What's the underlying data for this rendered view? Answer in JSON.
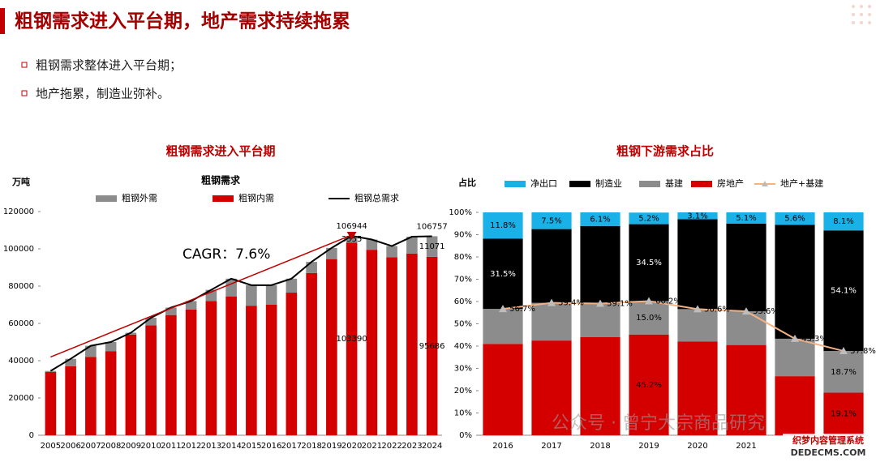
{
  "title": "粗钢需求进入平台期，地产需求持续拖累",
  "bullets": [
    "粗钢需求整体进入平台期；",
    "地产拖累，制造业弥补。"
  ],
  "watermark": "公众号 · 曾宁大宗商品研究",
  "badge": [
    "织梦内容管理系统",
    "DEDECMS.COM"
  ],
  "chart_data": [
    {
      "type": "bar",
      "stacked": true,
      "heading": "粗钢需求进入平台期",
      "title": "粗钢需求",
      "y_label": "万吨",
      "annotation": "CAGR：7.6%",
      "categories": [
        "2005",
        "2006",
        "2007",
        "2008",
        "2009",
        "2010",
        "2011",
        "2012",
        "2013",
        "2014",
        "2015",
        "2016",
        "2017",
        "2018",
        "2019",
        "2020",
        "2021",
        "2022",
        "2023",
        "2024"
      ],
      "series": [
        {
          "name": "粗钢外需",
          "color": "#8c8c8c",
          "kind": "bar",
          "values": [
            500,
            4000,
            6000,
            5000,
            1000,
            4000,
            4000,
            4500,
            6000,
            9500,
            11000,
            10500,
            7500,
            6000,
            6000,
            3555,
            5500,
            6000,
            9000,
            11071
          ],
          "value_labels": [
            null,
            null,
            null,
            null,
            null,
            null,
            null,
            null,
            null,
            null,
            null,
            null,
            null,
            null,
            null,
            "3555",
            null,
            null,
            null,
            "11071"
          ]
        },
        {
          "name": "粗钢内需",
          "color": "#d40000",
          "kind": "bar",
          "values": [
            34000,
            37000,
            42000,
            45000,
            54000,
            59000,
            64500,
            67500,
            72000,
            74500,
            69500,
            70000,
            76500,
            87000,
            94500,
            103390,
            99500,
            95500,
            97500,
            95686
          ],
          "value_labels": [
            null,
            null,
            null,
            null,
            null,
            null,
            null,
            null,
            null,
            null,
            null,
            null,
            null,
            null,
            null,
            "103390",
            null,
            null,
            null,
            "95686"
          ]
        },
        {
          "name": "粗钢总需求",
          "color": "#000000",
          "kind": "line",
          "values": [
            34500,
            41000,
            48000,
            50000,
            55000,
            63000,
            68500,
            72000,
            78000,
            84000,
            80500,
            80500,
            84000,
            93000,
            100500,
            106944,
            105000,
            101500,
            106500,
            106757
          ],
          "value_labels": [
            null,
            null,
            null,
            null,
            null,
            null,
            null,
            null,
            null,
            null,
            null,
            null,
            null,
            null,
            null,
            "106944",
            null,
            null,
            null,
            "106757"
          ]
        }
      ],
      "ylim": [
        0,
        120000
      ],
      "yticks": [
        0,
        20000,
        40000,
        60000,
        80000,
        100000,
        120000
      ]
    },
    {
      "type": "bar",
      "stacked": true,
      "heading": "粗钢下游需求占比",
      "y_label": "占比",
      "categories": [
        "2016",
        "2017",
        "2018",
        "2019",
        "2020",
        "2021",
        null,
        null
      ],
      "series": [
        {
          "name": "净出口",
          "color": "#1ab0e8",
          "kind": "bar",
          "values": [
            11.8,
            7.5,
            6.1,
            5.2,
            3.1,
            5.1,
            5.6,
            8.1
          ],
          "value_labels": [
            "11.8%",
            "7.5%",
            "6.1%",
            "5.2%",
            "3.1%",
            "5.1%",
            "5.6%",
            "8.1%"
          ]
        },
        {
          "name": "制造业",
          "color": "#000000",
          "kind": "bar",
          "values": [
            31.5,
            33.1,
            34.8,
            34.5,
            40.3,
            39.3,
            51.1,
            54.1
          ],
          "value_labels": [
            "31.5%",
            null,
            null,
            "34.5%",
            null,
            null,
            null,
            "54.1%"
          ]
        },
        {
          "name": "基建",
          "color": "#8c8c8c",
          "kind": "bar",
          "values": [
            15.7,
            16.9,
            15.1,
            15.0,
            14.6,
            15.1,
            16.8,
            18.7
          ],
          "value_labels": [
            null,
            null,
            null,
            "15.0%",
            null,
            null,
            null,
            "18.7%"
          ]
        },
        {
          "name": "房地产",
          "color": "#d40000",
          "kind": "bar",
          "values": [
            41,
            42.5,
            44,
            45.2,
            42,
            40.5,
            26.5,
            19.1
          ],
          "value_labels": [
            null,
            null,
            null,
            "45.2%",
            null,
            null,
            null,
            "19.1%"
          ]
        },
        {
          "name": "地产+基建",
          "color": "#f4b183",
          "kind": "line",
          "marker": "triangle",
          "values": [
            56.7,
            59.4,
            59.1,
            60.2,
            56.6,
            55.6,
            43.3,
            37.8
          ],
          "value_labels": [
            "56.7%",
            "59.4%",
            "59.1%",
            "60.2%",
            "56.6%",
            "55.6%",
            "43.3%",
            "37.8%"
          ]
        }
      ],
      "ylim": [
        0,
        100
      ],
      "yticks": [
        {
          "value": 0,
          "label": "0%"
        },
        {
          "value": 10,
          "label": "10%"
        },
        {
          "value": 20,
          "label": "20%"
        },
        {
          "value": 30,
          "label": "30%"
        },
        {
          "value": 40,
          "label": "40%"
        },
        {
          "value": 50,
          "label": "50%"
        },
        {
          "value": 60,
          "label": "60%"
        },
        {
          "value": 70,
          "label": "70%"
        },
        {
          "value": 80,
          "label": "80%"
        },
        {
          "value": 90,
          "label": "90%"
        },
        {
          "value": 100,
          "label": "100%"
        }
      ]
    }
  ]
}
